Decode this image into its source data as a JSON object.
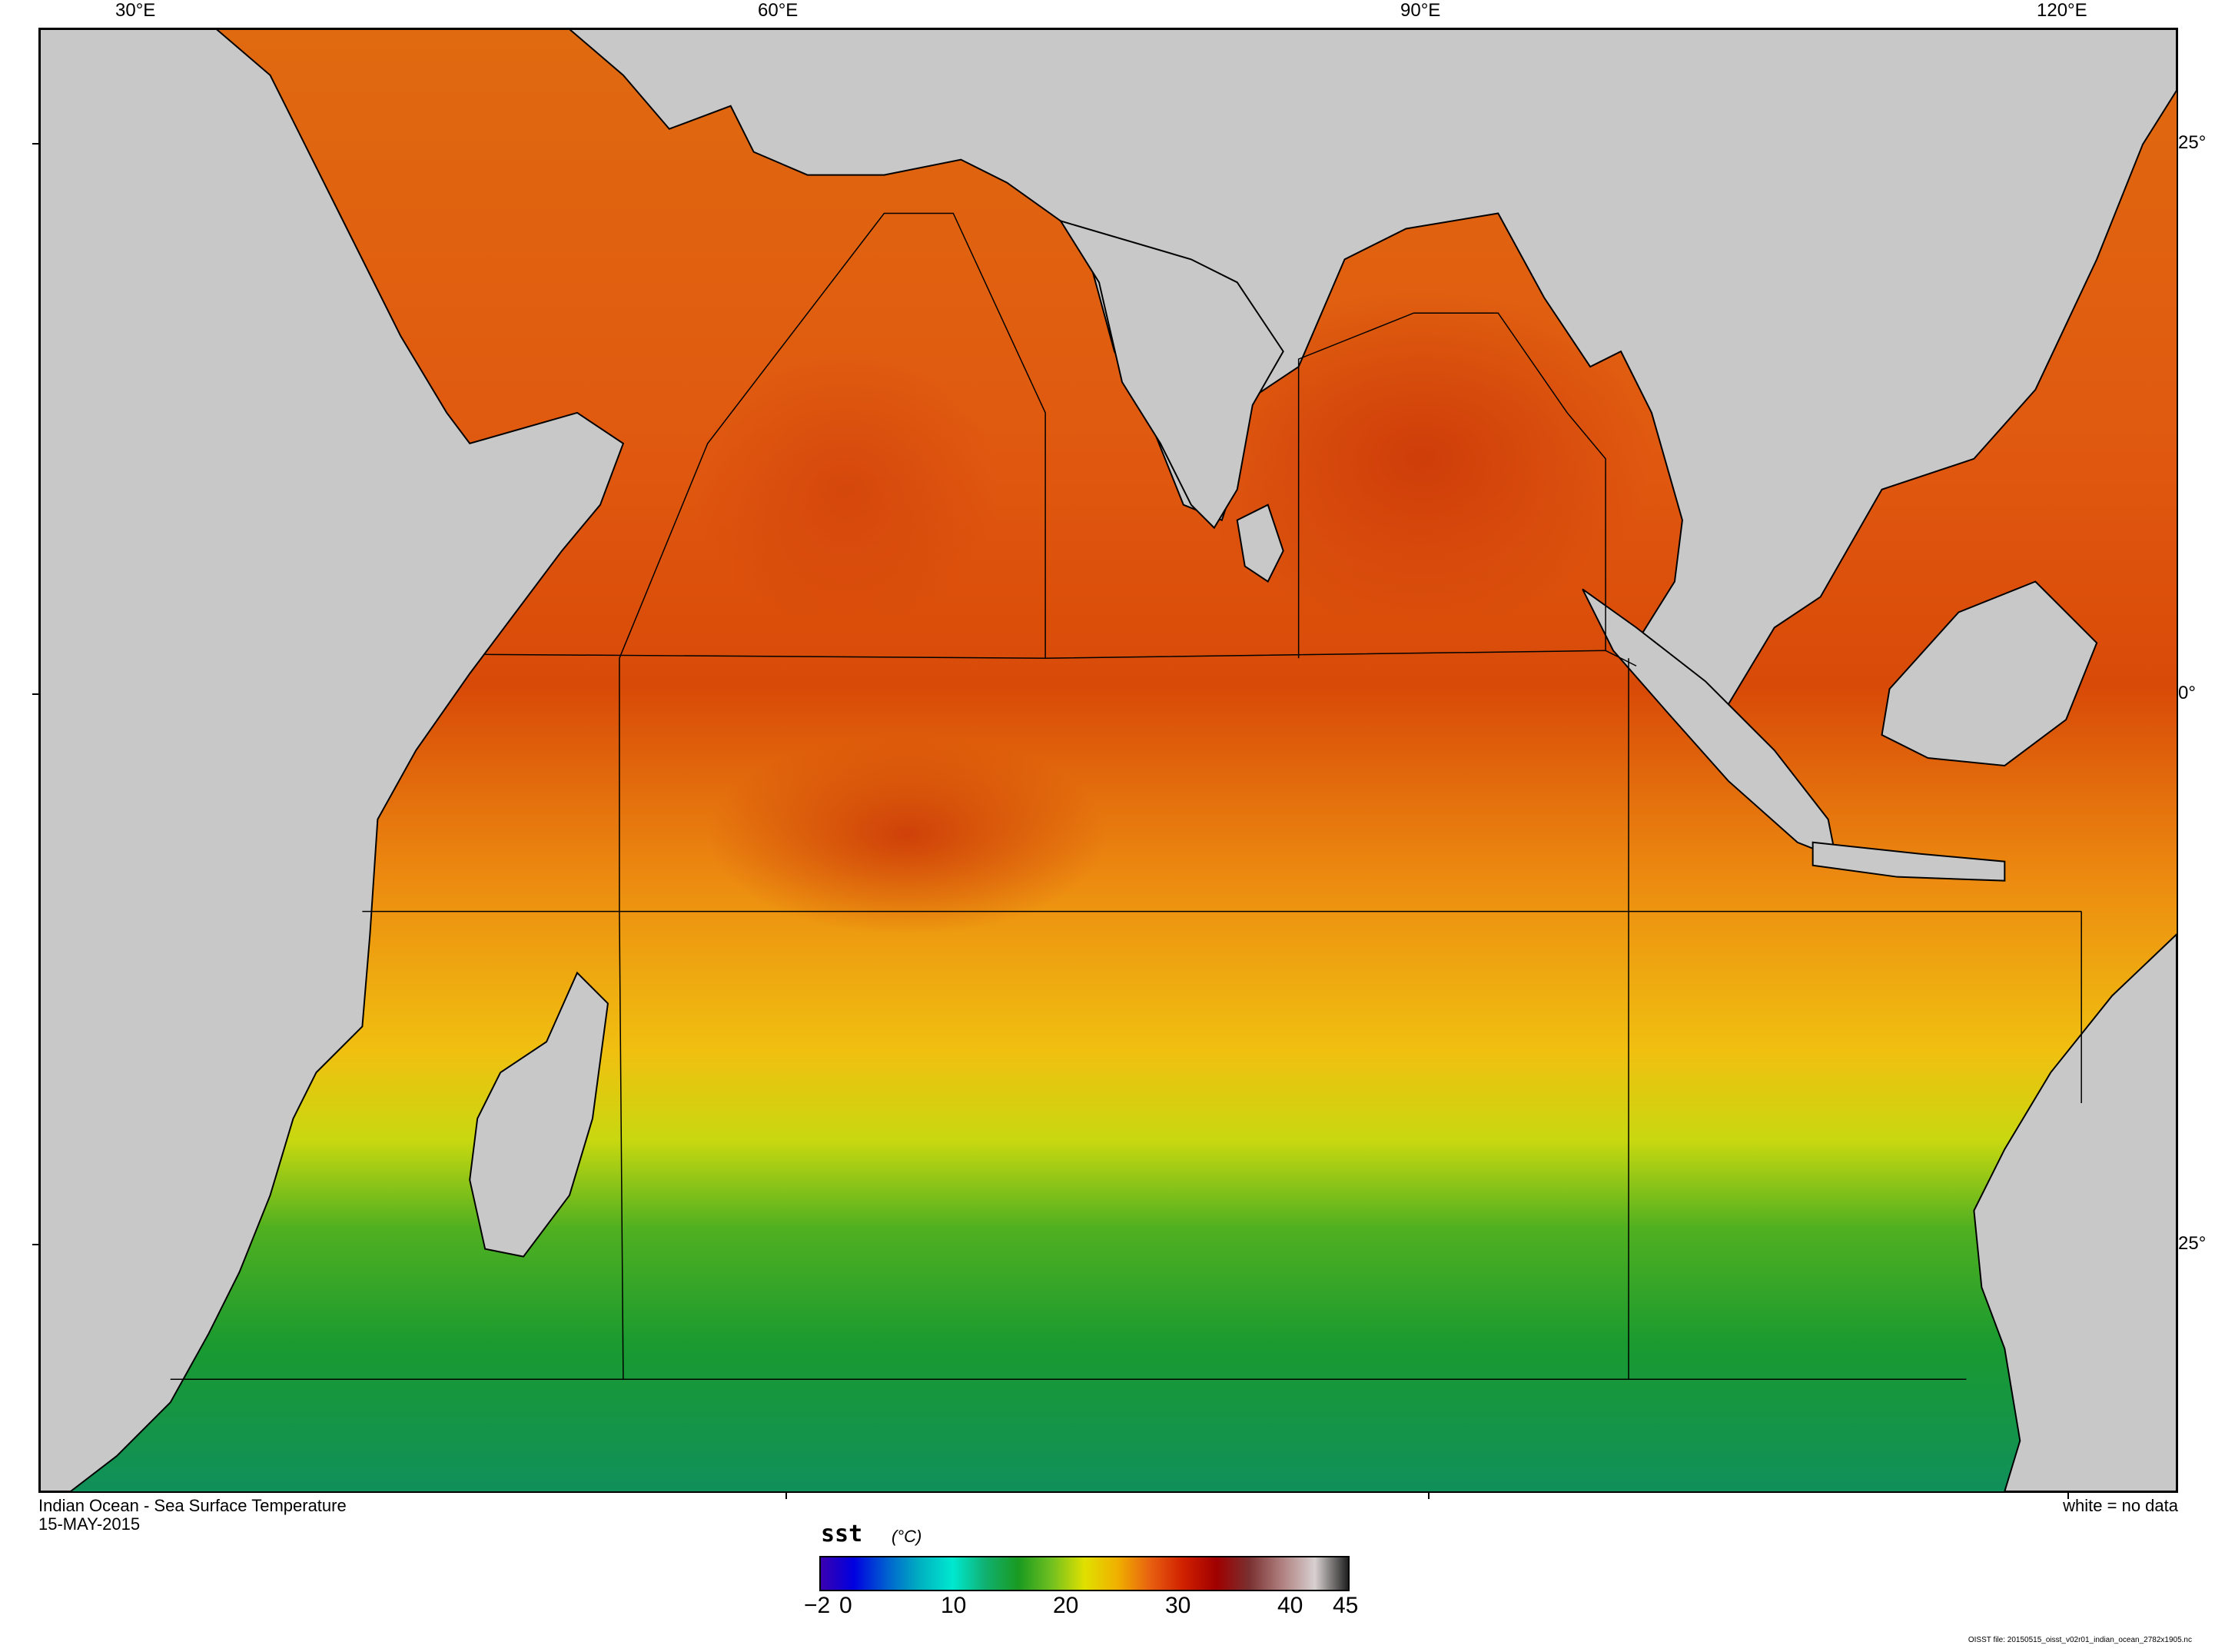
{
  "map": {
    "title": "Indian Ocean - Sea Surface Temperature",
    "date": "15-MAY-2015",
    "no_data_note": "white = no data",
    "land_color": "#c8c8c8",
    "lon_labels": [
      "30°E",
      "60°E",
      "90°E",
      "120°E"
    ],
    "lat_labels": [
      "25°",
      "0°",
      "25°"
    ]
  },
  "colorbar": {
    "variable": "sst",
    "units": "(°C)",
    "tick_labels": [
      "−2",
      "0",
      "10",
      "20",
      "30",
      "40",
      "45"
    ],
    "min": -2,
    "max": 45,
    "stops": [
      "#3a00b0",
      "#0000e0",
      "#0060d0",
      "#00b0c0",
      "#00e8d0",
      "#10b070",
      "#1a9a20",
      "#70c020",
      "#e0e000",
      "#f0b000",
      "#e86010",
      "#d02000",
      "#a00000",
      "#7a3030",
      "#b08080",
      "#d8d0d0",
      "#202020"
    ]
  },
  "source_note": "OISST file: 20150515_oisst_v02r01_indian_ocean_2782x1905.nc"
}
